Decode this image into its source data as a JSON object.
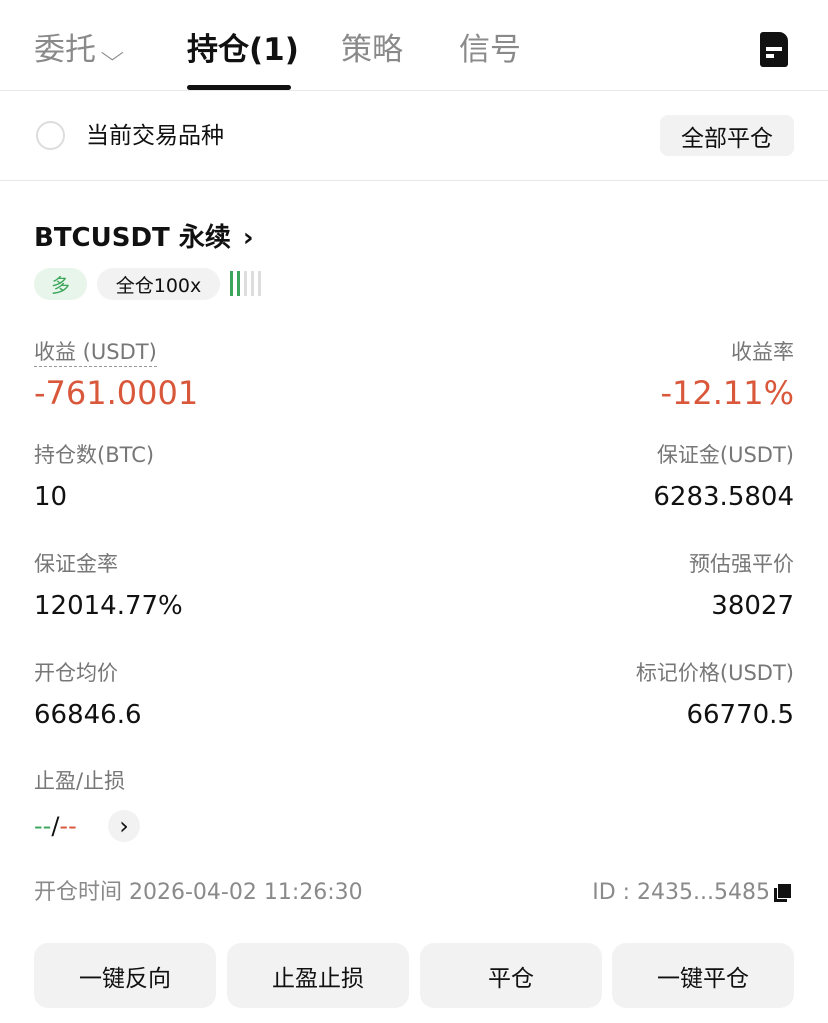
{
  "tabs": {
    "orders": "委托",
    "positions": "持仓(1)",
    "strategy": "策略",
    "signals": "信号"
  },
  "filter": {
    "current_symbol_label": "当前交易品种",
    "close_all_label": "全部平仓",
    "checked": false
  },
  "position": {
    "symbol": "BTCUSDT 永续",
    "side_tag": "多",
    "margin_tag": "全仓100x",
    "risk_level": 2,
    "pnl_label": "收益 (USDT)",
    "pnl_value": "-761.0001",
    "roe_label": "收益率",
    "roe_value": "-12.11%",
    "size_label": "持仓数(BTC)",
    "size_value": "10",
    "margin_label": "保证金(USDT)",
    "margin_value": "6283.5804",
    "margin_ratio_label": "保证金率",
    "margin_ratio_value": "12014.77%",
    "liq_label": "预估强平价",
    "liq_value": "38027",
    "entry_label": "开仓均价",
    "entry_value": "66846.6",
    "mark_label": "标记价格(USDT)",
    "mark_value": "66770.5",
    "tpsl_label": "止盈/止损",
    "tp_value": "--",
    "sl_value": "--",
    "tpsl_sep": "/",
    "open_time": "开仓时间 2026-04-02 11:26:30",
    "id": "ID : 2435...5485"
  },
  "actions": {
    "reverse": "一键反向",
    "tpsl": "止盈止损",
    "close": "平仓",
    "quick_close": "一键平仓"
  },
  "colors": {
    "loss": "#d9573b",
    "long": "#3aa55b",
    "long_bg": "#e8f5ea"
  }
}
